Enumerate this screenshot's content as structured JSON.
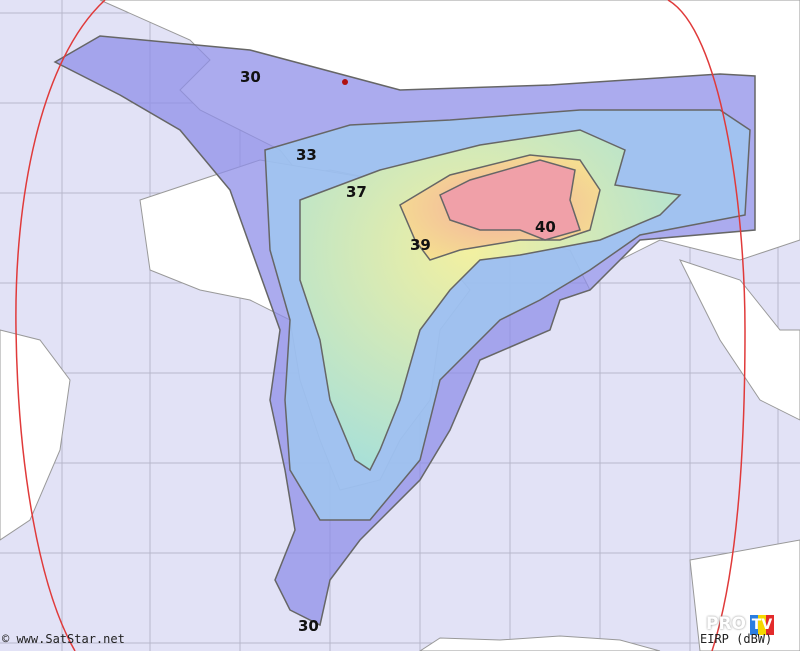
{
  "map": {
    "credit": "© www.SatStar.net",
    "unit_label": "EIRP (dBW)",
    "logo_text": "PRO TV",
    "contour_labels": [
      "30",
      "33",
      "37",
      "39",
      "40",
      "30"
    ],
    "colors": {
      "ocean": "#e2e2f6",
      "land": "#ffffff",
      "horizon": "#e03a3a",
      "c30": "#8f8fe8",
      "c33": "#9fc8f0",
      "c37": "#e8f0a0",
      "c39": "#f7d090",
      "c40": "#f0a0a8"
    }
  }
}
